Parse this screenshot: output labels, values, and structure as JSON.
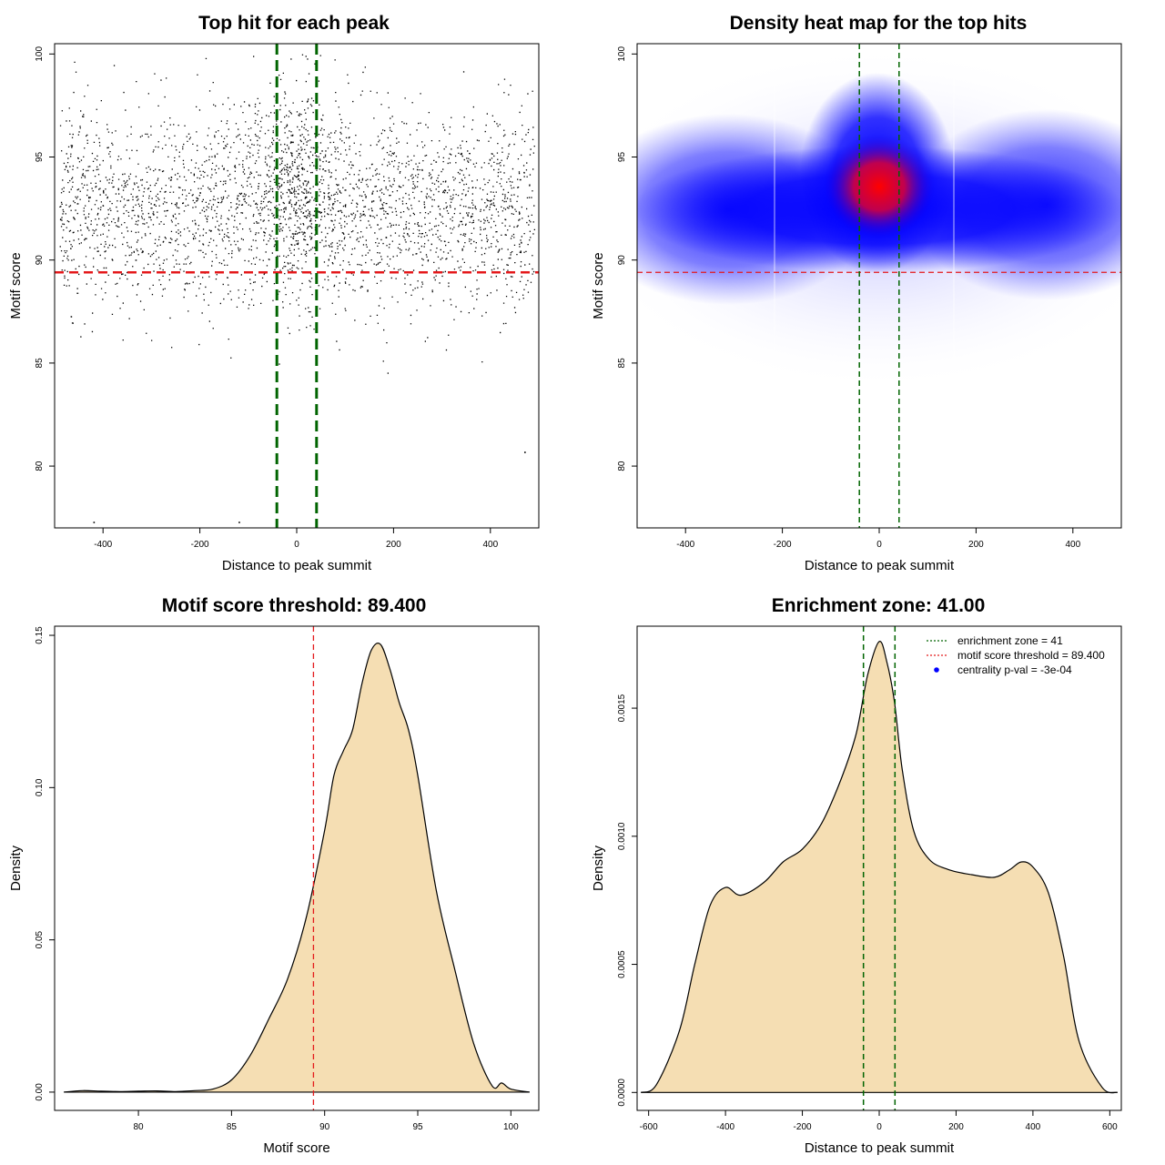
{
  "chart_data": [
    {
      "type": "scatter",
      "title": "Top hit for each peak",
      "xlabel": "Distance to peak summit",
      "ylabel": "Motif score",
      "xlim": [
        -500,
        500
      ],
      "ylim": [
        77,
        100.5
      ],
      "xticks": [
        -400,
        -200,
        0,
        200,
        400
      ],
      "yticks": [
        80,
        85,
        90,
        95,
        100
      ],
      "threshold_y": 89.4,
      "enrichment_zone": [
        -41,
        41
      ],
      "points_note_center_score": 92.5,
      "outliers": [
        {
          "x": -420,
          "y": 77.3
        },
        {
          "x": -120,
          "y": 77.3
        },
        {
          "x": 470,
          "y": 80.7
        }
      ]
    },
    {
      "type": "heatmap",
      "title": "Density heat map for the top hits",
      "xlabel": "Distance to peak summit",
      "ylabel": "Motif score",
      "xlim": [
        -500,
        500
      ],
      "ylim": [
        77,
        100.5
      ],
      "xticks": [
        -400,
        -200,
        0,
        200,
        400
      ],
      "yticks": [
        80,
        85,
        90,
        95,
        100
      ],
      "threshold_y": 89.4,
      "enrichment_zone": [
        -41,
        41
      ],
      "peak": {
        "x": 5,
        "y": 93.3
      },
      "colors": [
        "#ffffff",
        "#0000ff",
        "#ff0000"
      ]
    },
    {
      "type": "area",
      "title": "Motif score threshold: 89.400",
      "xlabel": "Motif score",
      "ylabel": "Density",
      "xlim": [
        75.5,
        101.5
      ],
      "ylim": [
        -0.006,
        0.153
      ],
      "xticks": [
        80,
        85,
        90,
        95,
        100
      ],
      "yticks": [
        "0.00",
        "0.05",
        "0.10",
        "0.15"
      ],
      "ytick_values": [
        0,
        0.05,
        0.1,
        0.15
      ],
      "threshold_x": 89.4,
      "fill": "#f5deb3",
      "x": [
        76,
        77,
        78,
        79,
        80,
        81,
        82,
        83,
        84,
        85,
        86,
        87,
        88,
        89,
        90,
        90.5,
        91,
        91.5,
        92,
        92.5,
        93,
        93.5,
        94,
        94.5,
        95,
        96,
        97,
        98,
        99,
        99.5,
        100,
        101
      ],
      "y": [
        0,
        0.0005,
        0.0003,
        0.0002,
        0.0003,
        0.0004,
        0.0002,
        0.0005,
        0.001,
        0.004,
        0.012,
        0.024,
        0.037,
        0.057,
        0.086,
        0.104,
        0.112,
        0.119,
        0.134,
        0.145,
        0.147,
        0.139,
        0.128,
        0.119,
        0.104,
        0.066,
        0.04,
        0.016,
        0.002,
        0.003,
        0.001,
        0
      ]
    },
    {
      "type": "area",
      "title": "Enrichment zone: 41.00",
      "xlabel": "Distance to peak summit",
      "ylabel": "Density",
      "xlim": [
        -630,
        630
      ],
      "ylim": [
        -7e-05,
        0.00182
      ],
      "xticks": [
        -600,
        -400,
        -200,
        0,
        200,
        400,
        600
      ],
      "yticks": [
        "0.0000",
        "0.0005",
        "0.0010",
        "0.0015"
      ],
      "ytick_values": [
        0,
        0.0005,
        0.001,
        0.0015
      ],
      "enrichment_zone": [
        -41,
        41
      ],
      "fill": "#f5deb3",
      "x": [
        -620,
        -580,
        -520,
        -480,
        -440,
        -400,
        -360,
        -300,
        -250,
        -200,
        -150,
        -100,
        -60,
        -30,
        0,
        20,
        40,
        60,
        90,
        130,
        180,
        240,
        300,
        340,
        370,
        400,
        440,
        480,
        520,
        580,
        620
      ],
      "y": [
        0,
        3e-05,
        0.00024,
        0.0005,
        0.00073,
        0.0008,
        0.00077,
        0.00082,
        0.0009,
        0.00095,
        0.00105,
        0.00122,
        0.0014,
        0.00163,
        0.00176,
        0.00168,
        0.00152,
        0.00126,
        0.00102,
        0.00091,
        0.00087,
        0.00085,
        0.00084,
        0.00087,
        0.0009,
        0.00088,
        0.00078,
        0.00053,
        0.0002,
        2e-05,
        0
      ],
      "legend": [
        {
          "label": "enrichment zone = 41",
          "color": "#006400",
          "style": "dotted"
        },
        {
          "label": "motif score threshold = 89.400",
          "color": "#e41a1c",
          "style": "dotted"
        },
        {
          "label": "centrality p-val = -3e-04",
          "color": "#0000ff",
          "style": "point"
        }
      ],
      "legend_position": "top-right"
    }
  ]
}
